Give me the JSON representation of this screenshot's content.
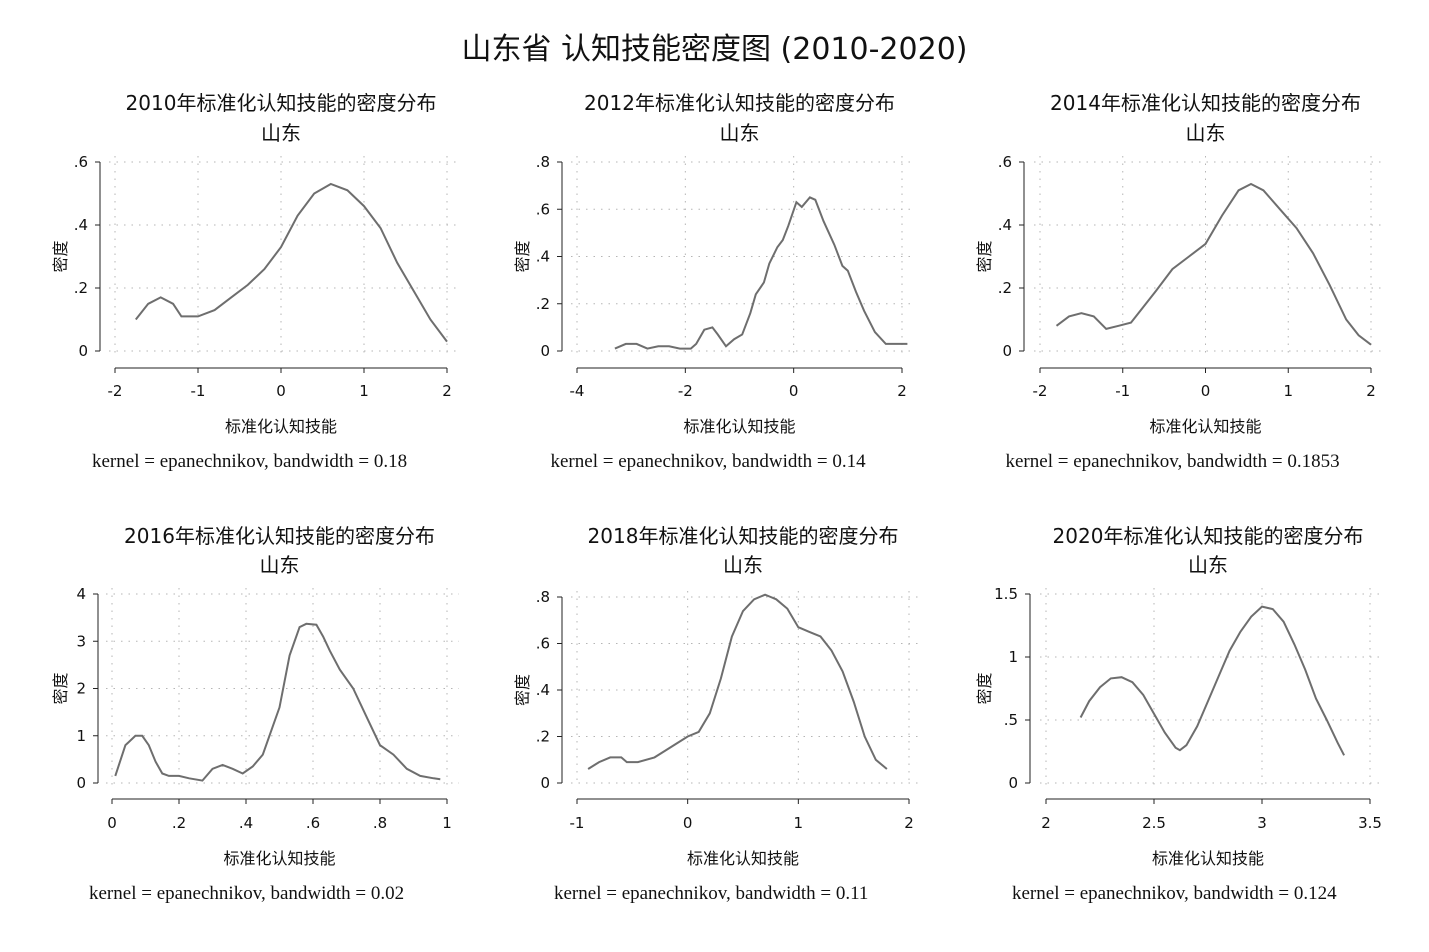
{
  "main_title": "山东省 认知技能密度图 (2010-2020)",
  "chart_data": [
    {
      "type": "line",
      "title": "2010年标准化认知技能的密度分布",
      "subtitle": "山东",
      "xlabel": "标准化认知技能",
      "ylabel": "密度",
      "xlim": [
        -2,
        2
      ],
      "ylim": [
        0,
        0.6
      ],
      "xticks": [
        -2,
        -1,
        0,
        1,
        2
      ],
      "xtick_labels": [
        "-2",
        "-1",
        "0",
        "1",
        "2"
      ],
      "yticks": [
        0,
        0.2,
        0.4,
        0.6
      ],
      "ytick_labels": [
        "0",
        ".2",
        ".4",
        ".6"
      ],
      "grid": true,
      "note": "kernel = epanechnikov, bandwidth = 0.18",
      "x": [
        -1.75,
        -1.6,
        -1.45,
        -1.3,
        -1.2,
        -1.0,
        -0.8,
        -0.6,
        -0.4,
        -0.2,
        0.0,
        0.2,
        0.4,
        0.6,
        0.8,
        1.0,
        1.2,
        1.4,
        1.6,
        1.8,
        2.0
      ],
      "y": [
        0.1,
        0.15,
        0.17,
        0.15,
        0.11,
        0.11,
        0.13,
        0.17,
        0.21,
        0.26,
        0.33,
        0.43,
        0.5,
        0.53,
        0.51,
        0.46,
        0.39,
        0.28,
        0.19,
        0.1,
        0.03
      ]
    },
    {
      "type": "line",
      "title": "2012年标准化认知技能的密度分布",
      "subtitle": "山东",
      "xlabel": "标准化认知技能",
      "ylabel": "密度",
      "xlim": [
        -4,
        2
      ],
      "ylim": [
        0,
        0.8
      ],
      "xticks": [
        -4,
        -2,
        0,
        2
      ],
      "xtick_labels": [
        "-4",
        "-2",
        "0",
        "2"
      ],
      "yticks": [
        0,
        0.2,
        0.4,
        0.6,
        0.8
      ],
      "ytick_labels": [
        "0",
        ".2",
        ".4",
        ".6",
        ".8"
      ],
      "grid": true,
      "note": "kernel = epanechnikov, bandwidth = 0.14",
      "x": [
        -3.3,
        -3.1,
        -2.9,
        -2.7,
        -2.5,
        -2.3,
        -2.1,
        -1.9,
        -1.8,
        -1.65,
        -1.5,
        -1.4,
        -1.25,
        -1.1,
        -0.95,
        -0.8,
        -0.7,
        -0.55,
        -0.45,
        -0.3,
        -0.2,
        -0.1,
        0.05,
        0.15,
        0.3,
        0.4,
        0.55,
        0.75,
        0.9,
        1.0,
        1.15,
        1.3,
        1.5,
        1.7,
        1.9,
        2.1
      ],
      "y": [
        0.01,
        0.03,
        0.03,
        0.01,
        0.02,
        0.02,
        0.01,
        0.01,
        0.03,
        0.09,
        0.1,
        0.07,
        0.02,
        0.05,
        0.07,
        0.16,
        0.24,
        0.29,
        0.37,
        0.44,
        0.47,
        0.53,
        0.63,
        0.61,
        0.65,
        0.64,
        0.55,
        0.45,
        0.36,
        0.34,
        0.25,
        0.17,
        0.08,
        0.03,
        0.03,
        0.03
      ]
    },
    {
      "type": "line",
      "title": "2014年标准化认知技能的密度分布",
      "subtitle": "山东",
      "xlabel": "标准化认知技能",
      "ylabel": "密度",
      "xlim": [
        -2,
        2
      ],
      "ylim": [
        0,
        0.6
      ],
      "xticks": [
        -2,
        -1,
        0,
        1,
        2
      ],
      "xtick_labels": [
        "-2",
        "-1",
        "0",
        "1",
        "2"
      ],
      "yticks": [
        0,
        0.2,
        0.4,
        0.6
      ],
      "ytick_labels": [
        "0",
        ".2",
        ".4",
        ".6"
      ],
      "grid": true,
      "note": "kernel = epanechnikov, bandwidth = 0.1853",
      "x": [
        -1.8,
        -1.65,
        -1.5,
        -1.35,
        -1.2,
        -1.05,
        -0.9,
        -0.75,
        -0.6,
        -0.4,
        -0.2,
        0.0,
        0.2,
        0.4,
        0.55,
        0.7,
        0.9,
        1.1,
        1.3,
        1.5,
        1.7,
        1.85,
        2.0
      ],
      "y": [
        0.08,
        0.11,
        0.12,
        0.11,
        0.07,
        0.08,
        0.09,
        0.14,
        0.19,
        0.26,
        0.3,
        0.34,
        0.43,
        0.51,
        0.53,
        0.51,
        0.45,
        0.39,
        0.31,
        0.21,
        0.1,
        0.05,
        0.02
      ]
    },
    {
      "type": "line",
      "title": "2016年标准化认知技能的密度分布",
      "subtitle": "山东",
      "xlabel": "标准化认知技能",
      "ylabel": "密度",
      "xlim": [
        0,
        1
      ],
      "ylim": [
        0,
        4
      ],
      "xticks": [
        0,
        0.2,
        0.4,
        0.6,
        0.8,
        1
      ],
      "xtick_labels": [
        "0",
        ".2",
        ".4",
        ".6",
        ".8",
        "1"
      ],
      "yticks": [
        0,
        1,
        2,
        3,
        4
      ],
      "ytick_labels": [
        "0",
        "1",
        "2",
        "3",
        "4"
      ],
      "grid": true,
      "note": "kernel = epanechnikov, bandwidth = 0.02",
      "x": [
        0.01,
        0.04,
        0.07,
        0.09,
        0.11,
        0.13,
        0.15,
        0.17,
        0.2,
        0.23,
        0.27,
        0.3,
        0.33,
        0.36,
        0.39,
        0.42,
        0.45,
        0.48,
        0.5,
        0.53,
        0.56,
        0.58,
        0.61,
        0.63,
        0.65,
        0.68,
        0.72,
        0.76,
        0.8,
        0.84,
        0.88,
        0.92,
        0.96,
        0.98
      ],
      "y": [
        0.15,
        0.8,
        1.0,
        1.0,
        0.8,
        0.45,
        0.2,
        0.15,
        0.15,
        0.1,
        0.05,
        0.3,
        0.38,
        0.3,
        0.2,
        0.35,
        0.6,
        1.2,
        1.6,
        2.7,
        3.3,
        3.37,
        3.35,
        3.1,
        2.8,
        2.4,
        2.0,
        1.4,
        0.8,
        0.6,
        0.3,
        0.15,
        0.1,
        0.08
      ]
    },
    {
      "type": "line",
      "title": "2018年标准化认知技能的密度分布",
      "subtitle": "山东",
      "xlabel": "标准化认知技能",
      "ylabel": "密度",
      "xlim": [
        -1,
        2
      ],
      "ylim": [
        0,
        0.8
      ],
      "xticks": [
        -1,
        0,
        1,
        2
      ],
      "xtick_labels": [
        "-1",
        "0",
        "1",
        "2"
      ],
      "yticks": [
        0,
        0.2,
        0.4,
        0.6,
        0.8
      ],
      "ytick_labels": [
        "0",
        ".2",
        ".4",
        ".6",
        ".8"
      ],
      "grid": true,
      "note": "kernel = epanechnikov, bandwidth = 0.11",
      "x": [
        -0.9,
        -0.8,
        -0.7,
        -0.6,
        -0.55,
        -0.45,
        -0.3,
        -0.2,
        -0.1,
        0.0,
        0.1,
        0.2,
        0.3,
        0.4,
        0.5,
        0.6,
        0.7,
        0.75,
        0.8,
        0.9,
        1.0,
        1.1,
        1.2,
        1.3,
        1.4,
        1.5,
        1.6,
        1.7,
        1.8
      ],
      "y": [
        0.06,
        0.09,
        0.11,
        0.11,
        0.09,
        0.09,
        0.11,
        0.14,
        0.17,
        0.2,
        0.22,
        0.3,
        0.45,
        0.63,
        0.74,
        0.79,
        0.81,
        0.8,
        0.79,
        0.75,
        0.67,
        0.65,
        0.63,
        0.57,
        0.48,
        0.35,
        0.2,
        0.1,
        0.06
      ]
    },
    {
      "type": "line",
      "title": "2020年标准化认知技能的密度分布",
      "subtitle": "山东",
      "xlabel": "标准化认知技能",
      "ylabel": "密度",
      "xlim": [
        2,
        3.5
      ],
      "ylim": [
        0,
        1.5
      ],
      "xticks": [
        2,
        2.5,
        3,
        3.5
      ],
      "xtick_labels": [
        "2",
        "2.5",
        "3",
        "3.5"
      ],
      "yticks": [
        0,
        0.5,
        1,
        1.5
      ],
      "ytick_labels": [
        "0",
        ".5",
        "1",
        "1.5"
      ],
      "grid": true,
      "note": "kernel = epanechnikov, bandwidth = 0.124",
      "x": [
        2.16,
        2.2,
        2.25,
        2.3,
        2.35,
        2.4,
        2.45,
        2.5,
        2.55,
        2.6,
        2.62,
        2.65,
        2.7,
        2.75,
        2.8,
        2.85,
        2.9,
        2.95,
        3.0,
        3.05,
        3.1,
        3.15,
        3.2,
        3.25,
        3.3,
        3.35,
        3.38
      ],
      "y": [
        0.52,
        0.65,
        0.76,
        0.83,
        0.84,
        0.8,
        0.7,
        0.55,
        0.4,
        0.28,
        0.26,
        0.3,
        0.45,
        0.65,
        0.85,
        1.05,
        1.2,
        1.32,
        1.4,
        1.38,
        1.28,
        1.1,
        0.9,
        0.67,
        0.5,
        0.32,
        0.22
      ]
    }
  ]
}
